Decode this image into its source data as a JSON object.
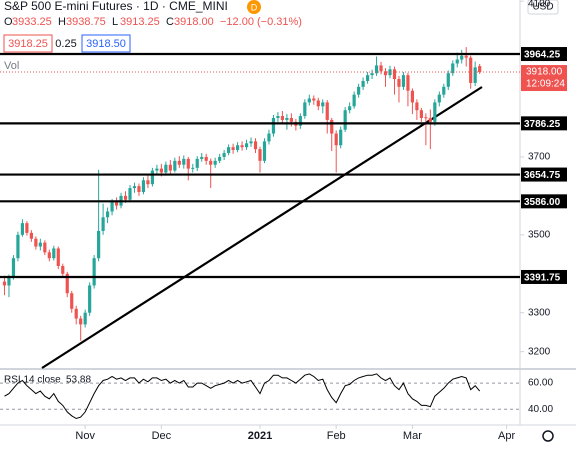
{
  "chart_data": {
    "type": "candlestick",
    "header": {
      "title": "S&P 500 E-mini Futures · 1D · CME_MINI",
      "badge": "D",
      "ohlc": [
        {
          "key": "O",
          "text": "3933.25"
        },
        {
          "key": "H",
          "text": "3938.75"
        },
        {
          "key": "L",
          "text": "3913.25"
        },
        {
          "key": "C",
          "text": "3918.00"
        }
      ],
      "change": "−12.00 (−0.31%)",
      "sell": "3918.25",
      "spread": "0.25",
      "buy": "3918.50",
      "volume": "Vol",
      "currency": "USD"
    },
    "up_color": "#26a69a",
    "down_color": "#ef5350",
    "candles": [
      [
        3380,
        3395,
        3345,
        3370
      ],
      [
        3370,
        3398,
        3340,
        3390
      ],
      [
        3390,
        3448,
        3385,
        3440
      ],
      [
        3440,
        3508,
        3432,
        3500
      ],
      [
        3500,
        3540,
        3495,
        3530
      ],
      [
        3530,
        3535,
        3498,
        3505
      ],
      [
        3505,
        3512,
        3482,
        3490
      ],
      [
        3490,
        3496,
        3462,
        3470
      ],
      [
        3470,
        3490,
        3460,
        3480
      ],
      [
        3480,
        3486,
        3448,
        3455
      ],
      [
        3455,
        3462,
        3432,
        3440
      ],
      [
        3440,
        3472,
        3434,
        3465
      ],
      [
        3465,
        3470,
        3412,
        3420
      ],
      [
        3420,
        3426,
        3392,
        3400
      ],
      [
        3400,
        3405,
        3340,
        3350
      ],
      [
        3350,
        3356,
        3300,
        3310
      ],
      [
        3310,
        3318,
        3270,
        3285
      ],
      [
        3285,
        3292,
        3228,
        3270
      ],
      [
        3270,
        3308,
        3262,
        3300
      ],
      [
        3300,
        3378,
        3292,
        3370
      ],
      [
        3370,
        3448,
        3362,
        3440
      ],
      [
        3440,
        3667,
        3432,
        3510
      ],
      [
        3510,
        3580,
        3500,
        3545
      ],
      [
        3545,
        3570,
        3530,
        3560
      ],
      [
        3560,
        3592,
        3550,
        3585
      ],
      [
        3585,
        3596,
        3565,
        3575
      ],
      [
        3575,
        3608,
        3568,
        3600
      ],
      [
        3600,
        3612,
        3582,
        3590
      ],
      [
        3590,
        3628,
        3584,
        3620
      ],
      [
        3620,
        3634,
        3608,
        3625
      ],
      [
        3625,
        3632,
        3600,
        3610
      ],
      [
        3610,
        3648,
        3604,
        3640
      ],
      [
        3640,
        3652,
        3620,
        3630
      ],
      [
        3630,
        3672,
        3624,
        3665
      ],
      [
        3665,
        3680,
        3655,
        3670
      ],
      [
        3670,
        3682,
        3650,
        3660
      ],
      [
        3660,
        3688,
        3652,
        3680
      ],
      [
        3680,
        3692,
        3656,
        3665
      ],
      [
        3665,
        3698,
        3660,
        3690
      ],
      [
        3690,
        3702,
        3672,
        3680
      ],
      [
        3680,
        3704,
        3670,
        3695
      ],
      [
        3695,
        3700,
        3640,
        3670
      ],
      [
        3670,
        3682,
        3660,
        3672
      ],
      [
        3672,
        3702,
        3664,
        3695
      ],
      [
        3695,
        3710,
        3688,
        3700
      ],
      [
        3700,
        3708,
        3680,
        3690
      ],
      [
        3690,
        3696,
        3620,
        3680
      ],
      [
        3680,
        3698,
        3672,
        3690
      ],
      [
        3690,
        3708,
        3684,
        3700
      ],
      [
        3700,
        3718,
        3692,
        3710
      ],
      [
        3710,
        3732,
        3704,
        3725
      ],
      [
        3725,
        3734,
        3708,
        3718
      ],
      [
        3718,
        3738,
        3712,
        3730
      ],
      [
        3730,
        3740,
        3716,
        3725
      ],
      [
        3725,
        3744,
        3718,
        3735
      ],
      [
        3735,
        3750,
        3726,
        3740
      ],
      [
        3740,
        3748,
        3710,
        3720
      ],
      [
        3720,
        3726,
        3660,
        3690
      ],
      [
        3690,
        3748,
        3684,
        3740
      ],
      [
        3740,
        3770,
        3732,
        3760
      ],
      [
        3760,
        3808,
        3752,
        3800
      ],
      [
        3800,
        3815,
        3790,
        3805
      ],
      [
        3805,
        3818,
        3786,
        3795
      ],
      [
        3795,
        3810,
        3770,
        3800
      ],
      [
        3800,
        3812,
        3778,
        3790
      ],
      [
        3790,
        3798,
        3768,
        3780
      ],
      [
        3780,
        3812,
        3772,
        3805
      ],
      [
        3805,
        3848,
        3798,
        3840
      ],
      [
        3840,
        3860,
        3832,
        3850
      ],
      [
        3850,
        3858,
        3834,
        3845
      ],
      [
        3845,
        3852,
        3820,
        3830
      ],
      [
        3830,
        3848,
        3812,
        3840
      ],
      [
        3840,
        3846,
        3760,
        3795
      ],
      [
        3795,
        3800,
        3715,
        3760
      ],
      [
        3760,
        3768,
        3660,
        3730
      ],
      [
        3730,
        3778,
        3722,
        3770
      ],
      [
        3770,
        3828,
        3764,
        3820
      ],
      [
        3820,
        3840,
        3812,
        3830
      ],
      [
        3830,
        3868,
        3824,
        3860
      ],
      [
        3860,
        3888,
        3852,
        3880
      ],
      [
        3880,
        3904,
        3872,
        3895
      ],
      [
        3895,
        3918,
        3888,
        3910
      ],
      [
        3910,
        3924,
        3900,
        3915
      ],
      [
        3915,
        3958,
        3908,
        3935
      ],
      [
        3935,
        3944,
        3912,
        3920
      ],
      [
        3920,
        3928,
        3880,
        3910
      ],
      [
        3910,
        3934,
        3902,
        3925
      ],
      [
        3925,
        3932,
        3860,
        3900
      ],
      [
        3900,
        3908,
        3840,
        3880
      ],
      [
        3880,
        3918,
        3872,
        3910
      ],
      [
        3910,
        3916,
        3830,
        3870
      ],
      [
        3870,
        3876,
        3810,
        3840
      ],
      [
        3840,
        3848,
        3795,
        3820
      ],
      [
        3820,
        3826,
        3790,
        3800
      ],
      [
        3802,
        3812,
        3730,
        3800
      ],
      [
        3800,
        3822,
        3720,
        3790
      ],
      [
        3790,
        3848,
        3780,
        3840
      ],
      [
        3840,
        3868,
        3830,
        3860
      ],
      [
        3860,
        3888,
        3852,
        3880
      ],
      [
        3880,
        3922,
        3872,
        3915
      ],
      [
        3915,
        3948,
        3908,
        3940
      ],
      [
        3940,
        3968,
        3930,
        3950
      ],
      [
        3950,
        3975,
        3940,
        3960
      ],
      [
        3960,
        3982,
        3932,
        3955
      ],
      [
        3955,
        3960,
        3875,
        3890
      ],
      [
        3890,
        3945,
        3882,
        3930
      ],
      [
        3933.25,
        3938.75,
        3913.25,
        3918
      ]
    ],
    "last_label": "3918.00",
    "countdown": "12:09:24",
    "ylim": [
      3158,
      4103
    ],
    "yticks": [
      3200,
      3300,
      3500,
      3700,
      4100
    ],
    "xlim": [
      -1,
      115
    ],
    "xticks": [
      {
        "value": 18,
        "label": "Nov"
      },
      {
        "value": 35,
        "label": "Dec"
      },
      {
        "value": 57,
        "label": "2021"
      },
      {
        "value": 74,
        "label": "Feb"
      },
      {
        "value": 91,
        "label": "Mar"
      },
      {
        "value": 112,
        "label": "Apr"
      }
    ],
    "levels": [
      {
        "value": 3964.25,
        "label": "3964.25"
      },
      {
        "value": 3786.25,
        "label": "3786.25"
      },
      {
        "value": 3654.75,
        "label": "3654.75"
      },
      {
        "value": 3586,
        "label": "3586.00"
      },
      {
        "value": 3391.75,
        "label": "3391.75"
      }
    ],
    "rsi": {
      "title": "RSI 14 close",
      "color": "#000000",
      "values": [
        50,
        52,
        56,
        60,
        62,
        58,
        55,
        52,
        54,
        50,
        48,
        52,
        46,
        43,
        38,
        35,
        33,
        34,
        38,
        45,
        52,
        58,
        62,
        63,
        65,
        63,
        64,
        62,
        64,
        64,
        60,
        63,
        61,
        64,
        64,
        62,
        63,
        60,
        62,
        60,
        62,
        57,
        57,
        60,
        60,
        58,
        56,
        58,
        59,
        60,
        62,
        60,
        62,
        60,
        61,
        62,
        57,
        52,
        60,
        62,
        66,
        66,
        64,
        64,
        62,
        60,
        63,
        66,
        67,
        65,
        62,
        63,
        55,
        49,
        45,
        52,
        58,
        59,
        62,
        64,
        65,
        66,
        66,
        67,
        64,
        62,
        64,
        58,
        55,
        60,
        52,
        48,
        46,
        43,
        43,
        42,
        50,
        53,
        56,
        60,
        63,
        64,
        65,
        64,
        55,
        58,
        53.88
      ],
      "ylim": [
        28,
        70
      ],
      "yticks": [
        {
          "value": 60,
          "label": "60.00"
        },
        {
          "value": 40,
          "label": "40.00"
        }
      ]
    }
  }
}
